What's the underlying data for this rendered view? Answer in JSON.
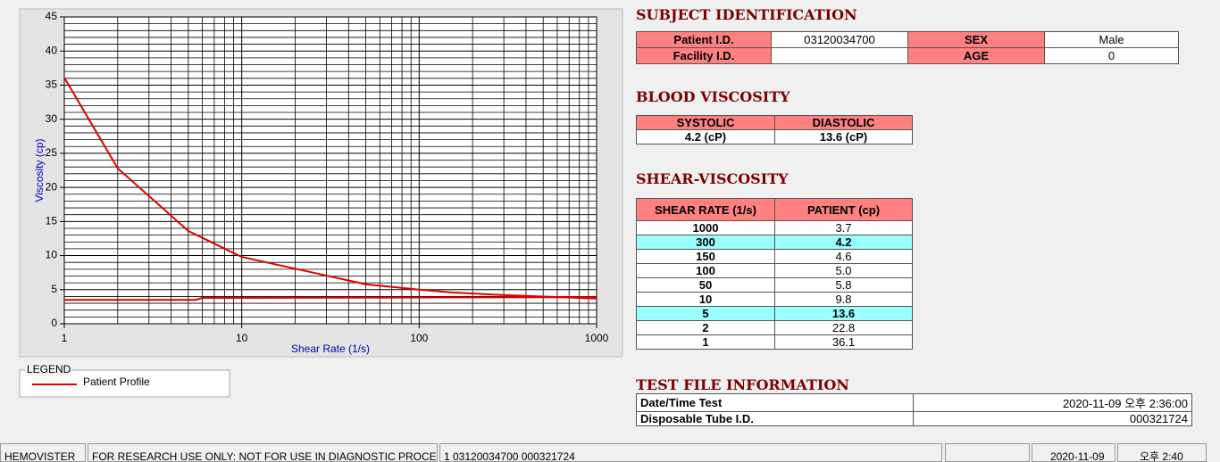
{
  "chart_data": {
    "type": "line",
    "log_x": true,
    "grid": true,
    "xlabel": "Shear Rate (1/s)",
    "ylabel": "Viscosity (cp)",
    "legend_title": "LEGEND",
    "xlim": [
      1,
      1000
    ],
    "xticks": [
      1,
      10,
      100,
      1000
    ],
    "x_minor_ticks": [
      2,
      3,
      4,
      5,
      6,
      7,
      8,
      9,
      20,
      30,
      40,
      50,
      60,
      70,
      80,
      90,
      200,
      300,
      400,
      500,
      600,
      700,
      800,
      900
    ],
    "ylim": [
      0,
      45
    ],
    "yticks": [
      0,
      5,
      10,
      15,
      20,
      25,
      30,
      35,
      40,
      45
    ],
    "y_minor_ticks": [
      1,
      2,
      3,
      4,
      6,
      7,
      8,
      9,
      11,
      12,
      13,
      14,
      16,
      17,
      18,
      19,
      21,
      22,
      23,
      24,
      26,
      27,
      28,
      29,
      31,
      32,
      33,
      34,
      36,
      37,
      38,
      39,
      41,
      42,
      43,
      44
    ],
    "series": [
      {
        "name": "Patient Profile",
        "color": "#e00000",
        "x": [
          1,
          2,
          5,
          10,
          50,
          100,
          150,
          300,
          1000
        ],
        "values": [
          36.1,
          22.8,
          13.6,
          9.8,
          5.8,
          5.0,
          4.6,
          4.2,
          3.7
        ]
      },
      {
        "color": "#e00000",
        "x": [
          1,
          5.5,
          6,
          1000
        ],
        "values": [
          3.5,
          3.5,
          3.8,
          3.9
        ]
      }
    ]
  },
  "subject_identification": {
    "title": "SUBJECT IDENTIFICATION",
    "fields": [
      {
        "label": "Patient I.D.",
        "value": "03120034700"
      },
      {
        "label": "SEX",
        "value": "Male"
      },
      {
        "label": "Facility I.D."
      },
      {
        "label": "AGE",
        "value": "0"
      }
    ]
  },
  "blood_viscosity": {
    "title": "BLOOD VISCOSITY",
    "headers": [
      "SYSTOLIC",
      "DIASTOLIC"
    ],
    "values": [
      "4.2 (cP)",
      "13.6 (cP)"
    ]
  },
  "shear_viscosity": {
    "title": "SHEAR-VISCOSITY",
    "headers": [
      "SHEAR RATE (1/s)",
      "PATIENT (cp)"
    ],
    "rows": [
      {
        "rate": "1000",
        "patient": "3.7"
      },
      {
        "rate": "300",
        "patient": "4.2",
        "highlight": true
      },
      {
        "rate": "150",
        "patient": "4.6"
      },
      {
        "rate": "100",
        "patient": "5.0"
      },
      {
        "rate": "50",
        "patient": "5.8"
      },
      {
        "rate": "10",
        "patient": "9.8"
      },
      {
        "rate": "5",
        "patient": "13.6",
        "highlight": true
      },
      {
        "rate": "2",
        "patient": "22.8"
      },
      {
        "rate": "1",
        "patient": "36.1"
      }
    ]
  },
  "test_file_information": {
    "title": "TEST FILE INFORMATION",
    "rows": [
      {
        "label": "Date/Time Test",
        "value": "2020-11-09  오후 2:36:00"
      },
      {
        "label": "Disposable Tube I.D.",
        "value": "000321724"
      }
    ]
  },
  "status_bar": [
    "HEMOVISTER",
    "FOR RESEARCH USE ONLY: NOT FOR USE IN DIAGNOSTIC PROCEDURES",
    "1  03120034700  000321724",
    "2020-11-09",
    "오후 2:40"
  ]
}
